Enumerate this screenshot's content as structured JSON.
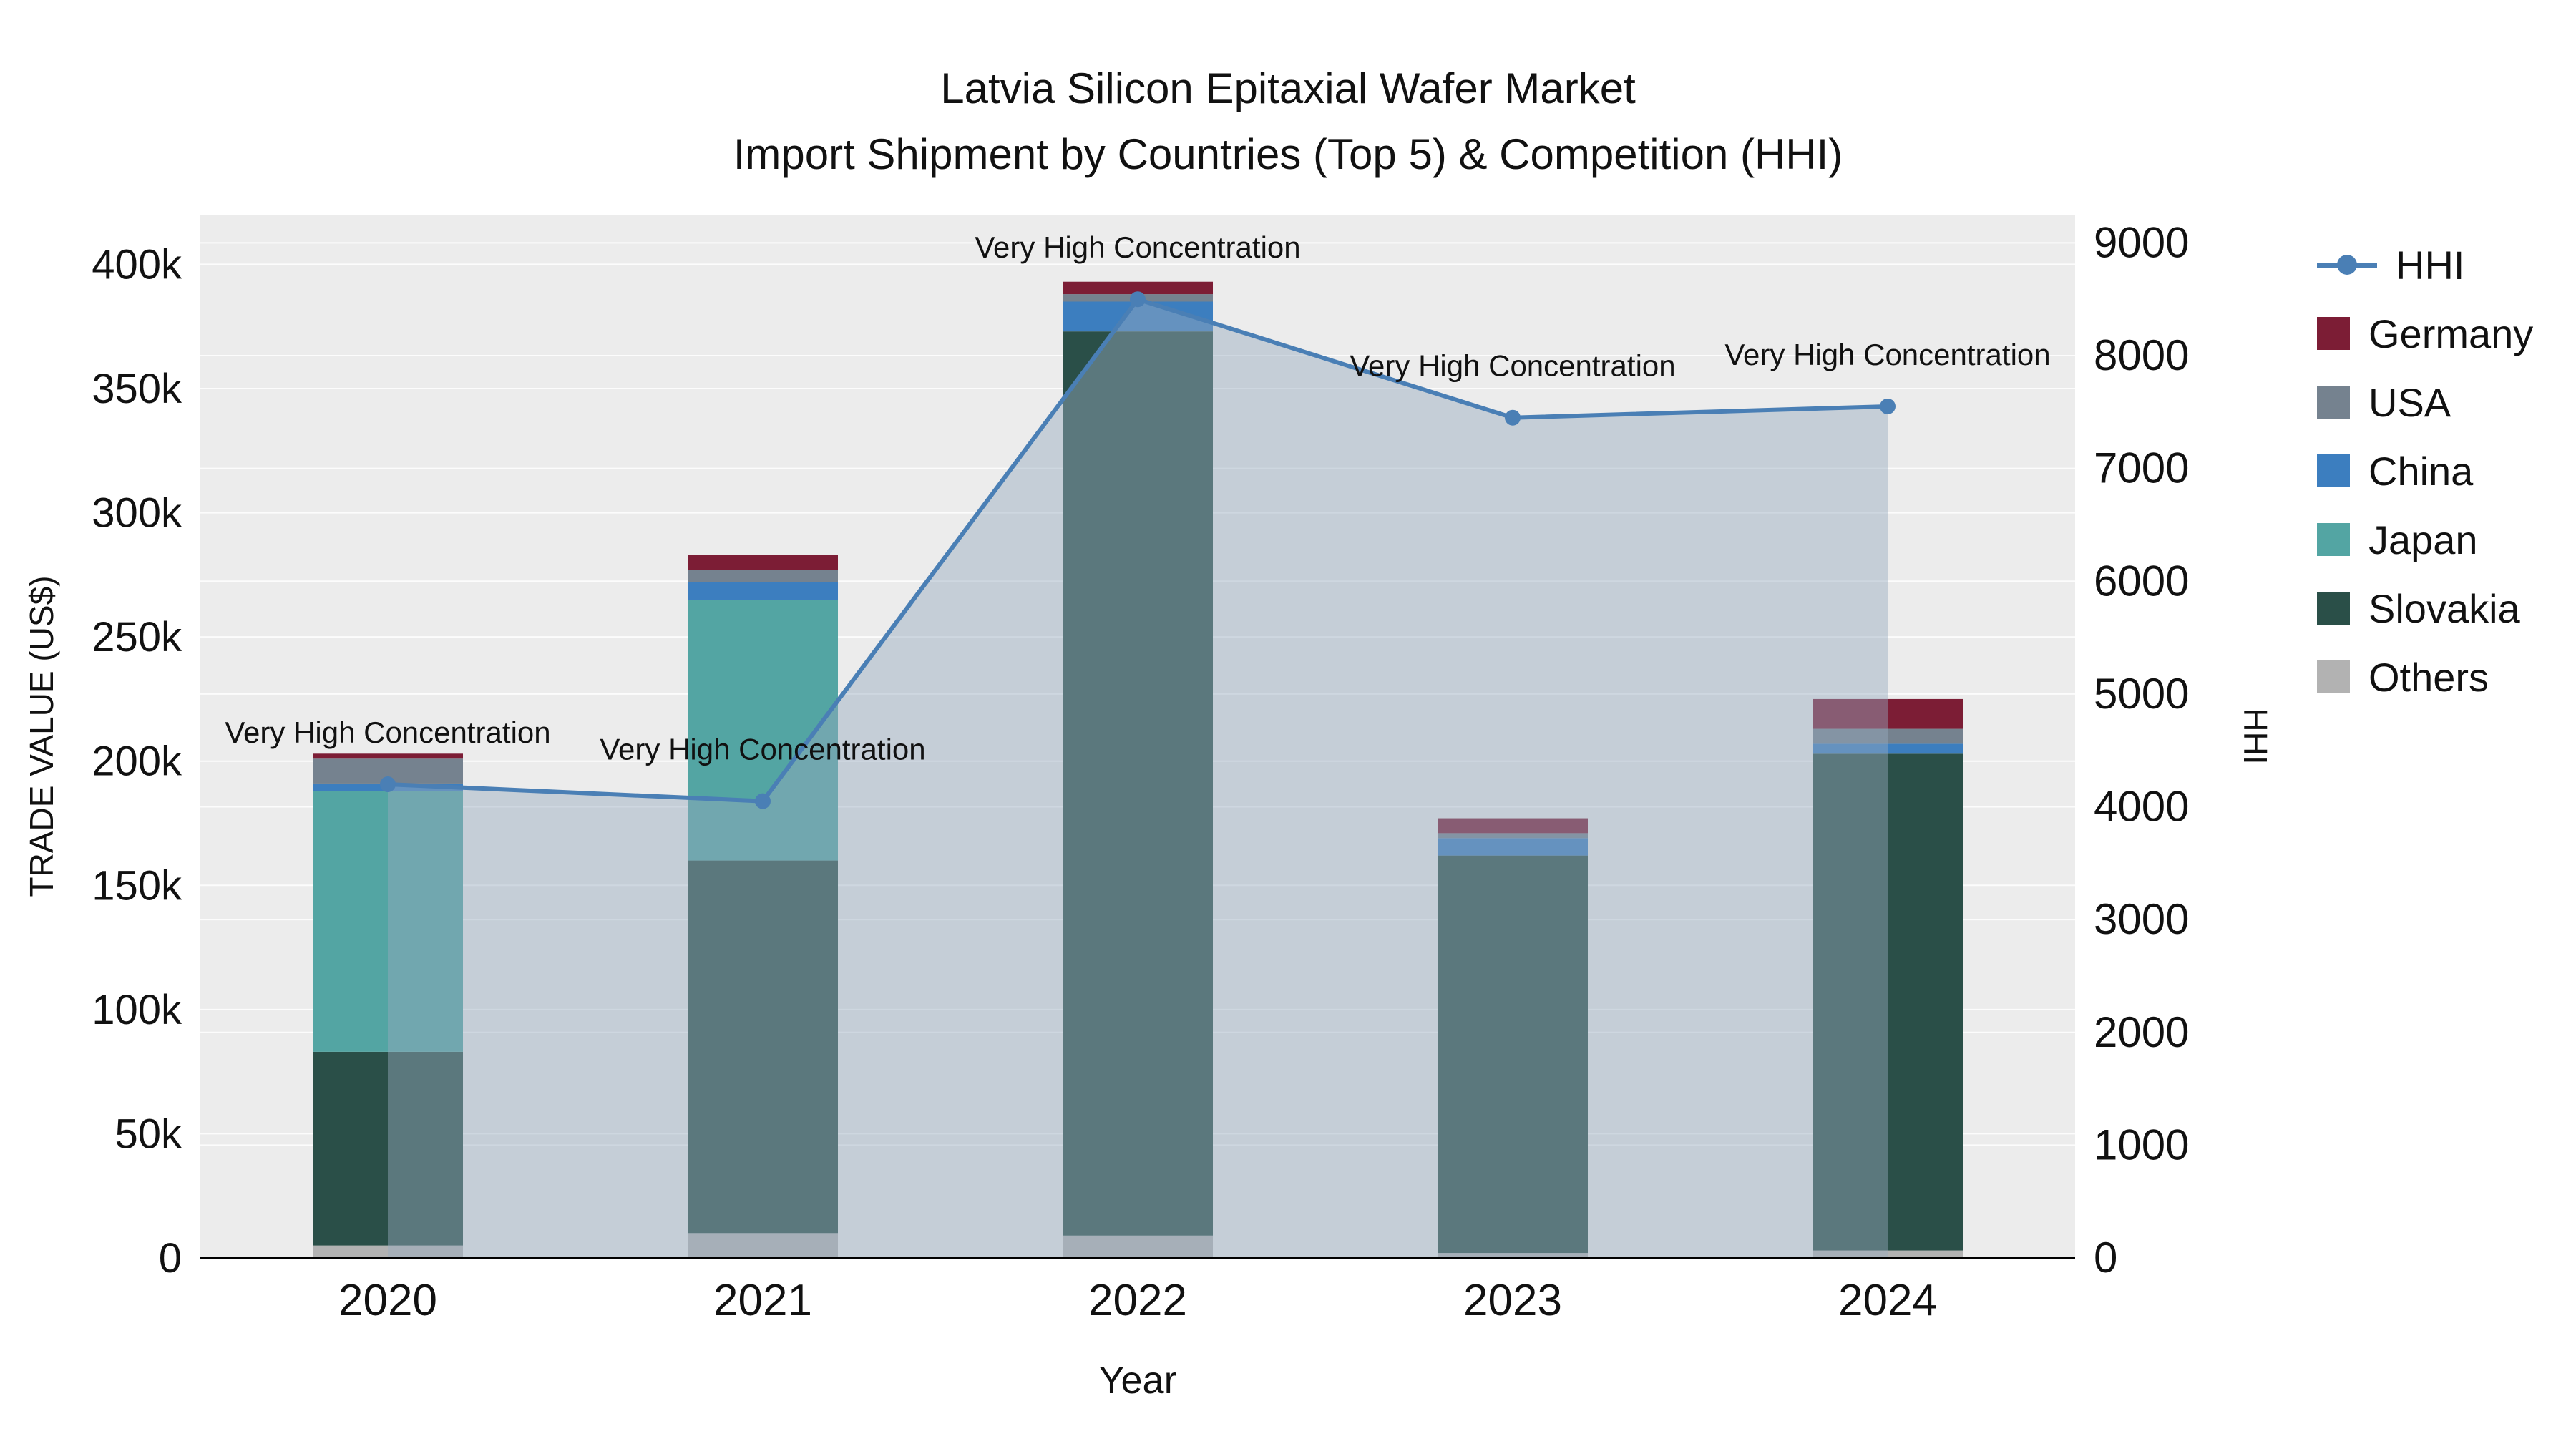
{
  "title": {
    "line1": "Latvia Silicon Epitaxial Wafer Market",
    "line2": "Import Shipment by Countries (Top 5) & Competition (HHI)"
  },
  "axes": {
    "left_label": "TRADE VALUE (US$)",
    "right_label": "HHI",
    "x_label": "Year",
    "left_ticks": [
      "0",
      "50k",
      "100k",
      "150k",
      "200k",
      "250k",
      "300k",
      "350k",
      "400k"
    ],
    "left_tick_values": [
      0,
      50000,
      100000,
      150000,
      200000,
      250000,
      300000,
      350000,
      400000
    ],
    "right_ticks": [
      "0",
      "1000",
      "2000",
      "3000",
      "4000",
      "5000",
      "6000",
      "7000",
      "8000",
      "9000"
    ],
    "right_tick_values": [
      0,
      1000,
      2000,
      3000,
      4000,
      5000,
      6000,
      7000,
      8000,
      9000
    ]
  },
  "legend": [
    {
      "label": "HHI",
      "color": "#4a7fb5",
      "type": "line"
    },
    {
      "label": "Germany",
      "color": "#7c1d35",
      "type": "swatch"
    },
    {
      "label": "USA",
      "color": "#75828f",
      "type": "swatch"
    },
    {
      "label": "China",
      "color": "#3c7ebf",
      "type": "swatch"
    },
    {
      "label": "Japan",
      "color": "#53a5a3",
      "type": "swatch"
    },
    {
      "label": "Slovakia",
      "color": "#2a4f48",
      "type": "swatch"
    },
    {
      "label": "Others",
      "color": "#b2b2b2",
      "type": "swatch"
    }
  ],
  "chart_data": {
    "type": "combo-stacked-bar-line",
    "title": "Latvia Silicon Epitaxial Wafer Market — Import Shipment by Countries (Top 5) & Competition (HHI)",
    "xlabel": "Year",
    "ylabel_left": "TRADE VALUE (US$)",
    "ylabel_right": "HHI",
    "categories": [
      "2020",
      "2021",
      "2022",
      "2023",
      "2024"
    ],
    "series": [
      {
        "name": "Others",
        "color": "#b2b2b2",
        "values": [
          5000,
          10000,
          9000,
          2000,
          3000
        ]
      },
      {
        "name": "Slovakia",
        "color": "#2a4f48",
        "values": [
          78000,
          150000,
          364000,
          160000,
          200000
        ]
      },
      {
        "name": "Japan",
        "color": "#53a5a3",
        "values": [
          105000,
          105000,
          0,
          0,
          0
        ]
      },
      {
        "name": "China",
        "color": "#3c7ebf",
        "values": [
          3000,
          7000,
          12000,
          7000,
          4000
        ]
      },
      {
        "name": "USA",
        "color": "#75828f",
        "values": [
          10000,
          5000,
          3000,
          2000,
          6000
        ]
      },
      {
        "name": "Germany",
        "color": "#7c1d35",
        "values": [
          2000,
          6000,
          5000,
          6000,
          12000
        ]
      }
    ],
    "line": {
      "name": "HHI",
      "color": "#4a7fb5",
      "area_color": "rgba(150,170,190,0.45)",
      "values": [
        4200,
        4050,
        8500,
        7450,
        7550
      ]
    },
    "annotations": [
      "Very High Concentration",
      "Very High Concentration",
      "Very High Concentration",
      "Very High Concentration",
      "Very High Concentration"
    ],
    "ylim_left": [
      0,
      420000
    ],
    "ylim_right": [
      0,
      9250
    ],
    "plot_bg": "#ececec",
    "grid_color": "#ffffff"
  }
}
